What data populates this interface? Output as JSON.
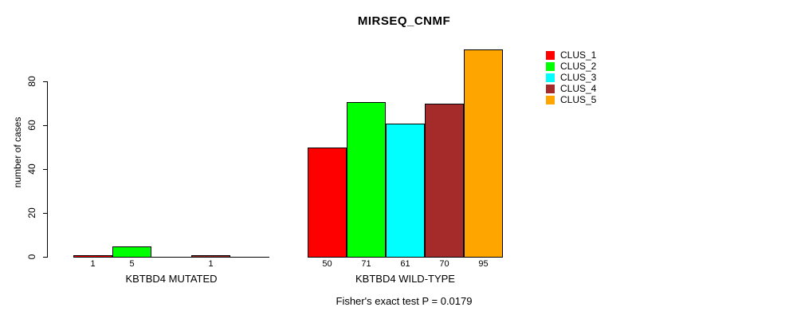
{
  "title": "MIRSEQ_CNMF",
  "annotation": "Fisher's exact test P = 0.0179",
  "chart_data": {
    "type": "bar",
    "title": "MIRSEQ_CNMF",
    "ylabel": "number of cases",
    "xlabel": "",
    "ylim": [
      0,
      95
    ],
    "yticks": [
      0,
      20,
      40,
      60,
      80
    ],
    "grid": false,
    "legend_position": "right",
    "legend": [
      {
        "label": "CLUS_1",
        "color": "#ff0000"
      },
      {
        "label": "CLUS_2",
        "color": "#00ff00"
      },
      {
        "label": "CLUS_3",
        "color": "#00ffff"
      },
      {
        "label": "CLUS_4",
        "color": "#a52a2a"
      },
      {
        "label": "CLUS_5",
        "color": "#ffa500"
      }
    ],
    "groups": [
      {
        "label": "KBTBD4 MUTATED",
        "categories": [
          "CLUS_1",
          "CLUS_2",
          "CLUS_3",
          "CLUS_4",
          "CLUS_5"
        ],
        "values": [
          1,
          5,
          0,
          1,
          0
        ],
        "bar_labels": [
          "1",
          "5",
          "",
          "1",
          ""
        ]
      },
      {
        "label": "KBTBD4 WILD-TYPE",
        "categories": [
          "CLUS_1",
          "CLUS_2",
          "CLUS_3",
          "CLUS_4",
          "CLUS_5"
        ],
        "values": [
          50,
          71,
          61,
          70,
          95
        ],
        "bar_labels": [
          "50",
          "71",
          "61",
          "70",
          "95"
        ]
      }
    ],
    "annotation": "Fisher's exact test P = 0.0179"
  }
}
